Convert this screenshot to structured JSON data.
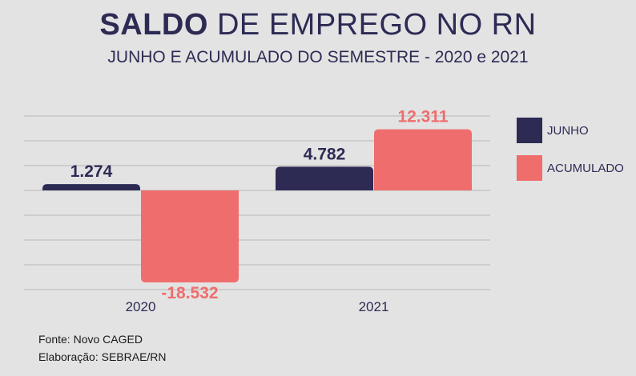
{
  "title_bold": "SALDO",
  "title_rest": "DE EMPREGO NO RN",
  "subtitle": "JUNHO E ACUMULADO DO SEMESTRE - 2020 e 2021",
  "colors": {
    "junho": "#2d2b54",
    "acumulado": "#ef6d6d",
    "grid": "#b7b7b7",
    "background": "#e3e3e3"
  },
  "chart_data": {
    "type": "bar",
    "title": "SALDO DE EMPREGO NO RN",
    "subtitle": "JUNHO E ACUMULADO DO SEMESTRE - 2020 e 2021",
    "categories": [
      "2020",
      "2021"
    ],
    "series": [
      {
        "name": "JUNHO",
        "values": [
          1274,
          4782
        ],
        "labels": [
          "1.274",
          "4.782"
        ],
        "color": "#2d2b54"
      },
      {
        "name": "ACUMULADO",
        "values": [
          -18532,
          12311
        ],
        "labels": [
          "-18.532",
          "12.311"
        ],
        "color": "#ef6d6d"
      }
    ],
    "legend_position": "right",
    "grid": true,
    "ylim": [
      -20000,
      15000
    ]
  },
  "footer": {
    "source": "Fonte: Novo CAGED",
    "credit": "Elaboração: SEBRAE/RN"
  }
}
